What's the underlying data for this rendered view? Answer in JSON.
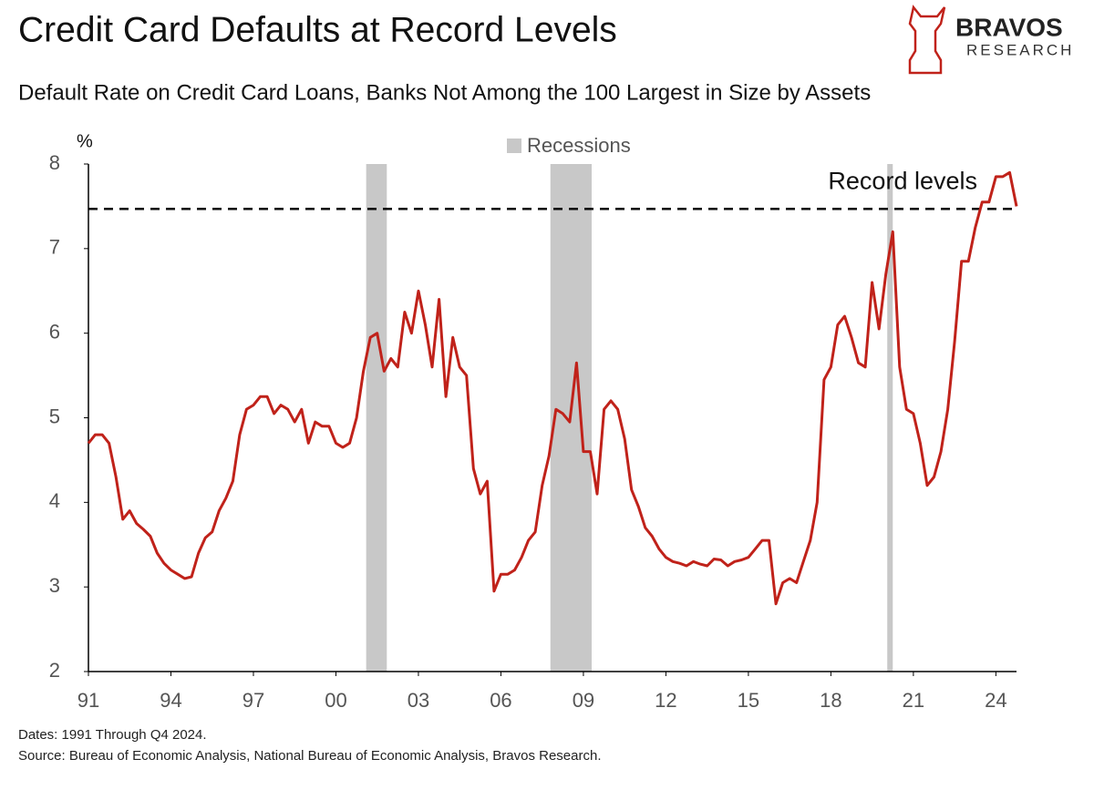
{
  "chart_data": {
    "type": "line",
    "title": "Credit Card Defaults at Record Levels",
    "subtitle": "Default Rate on Credit Card Loans, Banks Not Among the 100 Largest in Size by Assets",
    "brand": "BRAVOS",
    "brand_sub": "RESEARCH",
    "y_unit": "%",
    "annotation": {
      "text": "Record levels",
      "y": 7.47
    },
    "recessions": {
      "name": "Recessions",
      "color": "#c8c8c8",
      "spans": [
        [
          2001.1,
          2001.85
        ],
        [
          2007.8,
          2009.3
        ],
        [
          2020.05,
          2020.25
        ]
      ]
    },
    "notes": [
      "Dates: 1991 Through Q4 2024.",
      "Source: Bureau of Economic Analysis, National Bureau of Economic Analysis, Bravos Research."
    ],
    "xlim": [
      1991,
      2024.75
    ],
    "ylim": [
      2,
      8
    ],
    "yticks": [
      2,
      3,
      4,
      5,
      6,
      7,
      8
    ],
    "xticks": [
      {
        "value": 1991,
        "label": "91"
      },
      {
        "value": 1994,
        "label": "94"
      },
      {
        "value": 1997,
        "label": "97"
      },
      {
        "value": 2000,
        "label": "00"
      },
      {
        "value": 2003,
        "label": "03"
      },
      {
        "value": 2006,
        "label": "06"
      },
      {
        "value": 2009,
        "label": "09"
      },
      {
        "value": 2012,
        "label": "12"
      },
      {
        "value": 2015,
        "label": "15"
      },
      {
        "value": 2018,
        "label": "18"
      },
      {
        "value": 2021,
        "label": "21"
      },
      {
        "value": 2024,
        "label": "24"
      }
    ],
    "x": [
      1991,
      1991.25,
      1991.5,
      1991.75,
      1992,
      1992.25,
      1992.5,
      1992.75,
      1993,
      1993.25,
      1993.5,
      1993.75,
      1994,
      1994.25,
      1994.5,
      1994.75,
      1995,
      1995.25,
      1995.5,
      1995.75,
      1996,
      1996.25,
      1996.5,
      1996.75,
      1997,
      1997.25,
      1997.5,
      1997.75,
      1998,
      1998.25,
      1998.5,
      1998.75,
      1999,
      1999.25,
      1999.5,
      1999.75,
      2000,
      2000.25,
      2000.5,
      2000.75,
      2001,
      2001.25,
      2001.5,
      2001.75,
      2002,
      2002.25,
      2002.5,
      2002.75,
      2003,
      2003.25,
      2003.5,
      2003.75,
      2004,
      2004.25,
      2004.5,
      2004.75,
      2005,
      2005.25,
      2005.5,
      2005.75,
      2006,
      2006.25,
      2006.5,
      2006.75,
      2007,
      2007.25,
      2007.5,
      2007.75,
      2008,
      2008.25,
      2008.5,
      2008.75,
      2009,
      2009.25,
      2009.5,
      2009.75,
      2010,
      2010.25,
      2010.5,
      2010.75,
      2011,
      2011.25,
      2011.5,
      2011.75,
      2012,
      2012.25,
      2012.5,
      2012.75,
      2013,
      2013.25,
      2013.5,
      2013.75,
      2014,
      2014.25,
      2014.5,
      2014.75,
      2015,
      2015.25,
      2015.5,
      2015.75,
      2016,
      2016.25,
      2016.5,
      2016.75,
      2017,
      2017.25,
      2017.5,
      2017.75,
      2018,
      2018.25,
      2018.5,
      2018.75,
      2019,
      2019.25,
      2019.5,
      2019.75,
      2020,
      2020.25,
      2020.5,
      2020.75,
      2021,
      2021.25,
      2021.5,
      2021.75,
      2022,
      2022.25,
      2022.5,
      2022.75,
      2023,
      2023.25,
      2023.5,
      2023.75,
      2024,
      2024.25,
      2024.5,
      2024.75
    ],
    "series": [
      {
        "name": "Default Rate",
        "color": "#c0221a",
        "values": [
          4.7,
          4.8,
          4.8,
          4.7,
          4.3,
          3.8,
          3.9,
          3.75,
          3.68,
          3.6,
          3.4,
          3.28,
          3.2,
          3.15,
          3.1,
          3.12,
          3.4,
          3.58,
          3.65,
          3.9,
          4.05,
          4.25,
          4.8,
          5.1,
          5.15,
          5.25,
          5.25,
          5.05,
          5.15,
          5.1,
          4.95,
          5.1,
          4.7,
          4.95,
          4.9,
          4.9,
          4.7,
          4.65,
          4.7,
          5.0,
          5.55,
          5.95,
          6.0,
          5.55,
          5.7,
          5.6,
          6.25,
          6.0,
          6.5,
          6.1,
          5.6,
          6.4,
          5.25,
          5.95,
          5.6,
          5.5,
          4.4,
          4.1,
          4.25,
          2.95,
          3.15,
          3.15,
          3.2,
          3.35,
          3.55,
          3.65,
          4.2,
          4.55,
          5.1,
          5.05,
          4.95,
          5.65,
          4.6,
          4.6,
          4.1,
          5.1,
          5.2,
          5.1,
          4.75,
          4.15,
          3.95,
          3.7,
          3.6,
          3.45,
          3.35,
          3.3,
          3.28,
          3.25,
          3.3,
          3.27,
          3.25,
          3.33,
          3.32,
          3.25,
          3.3,
          3.32,
          3.35,
          3.45,
          3.55,
          3.55,
          2.8,
          3.05,
          3.1,
          3.05,
          3.3,
          3.55,
          4.0,
          5.45,
          5.6,
          6.1,
          6.2,
          5.95,
          5.65,
          5.6,
          6.6,
          6.05,
          6.7,
          7.2,
          5.6,
          5.1,
          5.05,
          4.7,
          4.2,
          4.3,
          4.6,
          5.1,
          5.9,
          6.85,
          6.85,
          7.25,
          7.55,
          7.55,
          7.85,
          7.85,
          7.9,
          7.5
        ]
      }
    ]
  }
}
